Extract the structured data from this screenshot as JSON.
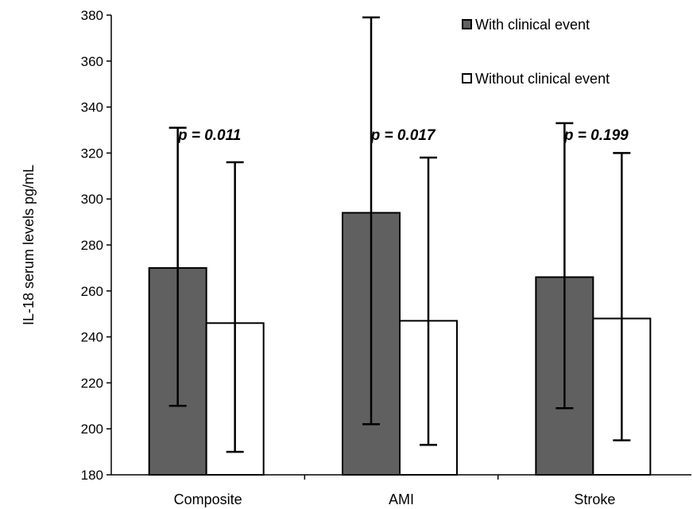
{
  "chart_data": {
    "type": "bar",
    "ylabel": "IL-18  serum levels pg/mL",
    "xlabel": "",
    "ylim": [
      180,
      380
    ],
    "yticks": [
      180,
      200,
      220,
      240,
      260,
      280,
      300,
      320,
      340,
      360,
      380
    ],
    "categories": [
      "Composite",
      "AMI",
      "Stroke"
    ],
    "series": [
      {
        "name": "With clinical event",
        "color": "#606060",
        "values": [
          270,
          294,
          266
        ],
        "error_low": [
          210,
          202,
          209
        ],
        "error_high": [
          331,
          379,
          333
        ]
      },
      {
        "name": "Without clinical event",
        "color": "#ffffff",
        "values": [
          246,
          247,
          248
        ],
        "error_low": [
          190,
          193,
          195
        ],
        "error_high": [
          316,
          318,
          320
        ]
      }
    ],
    "annotations": [
      "p = 0.011",
      "p = 0.017",
      "p = 0.199"
    ],
    "legend_position": "top-right",
    "grid": false
  }
}
